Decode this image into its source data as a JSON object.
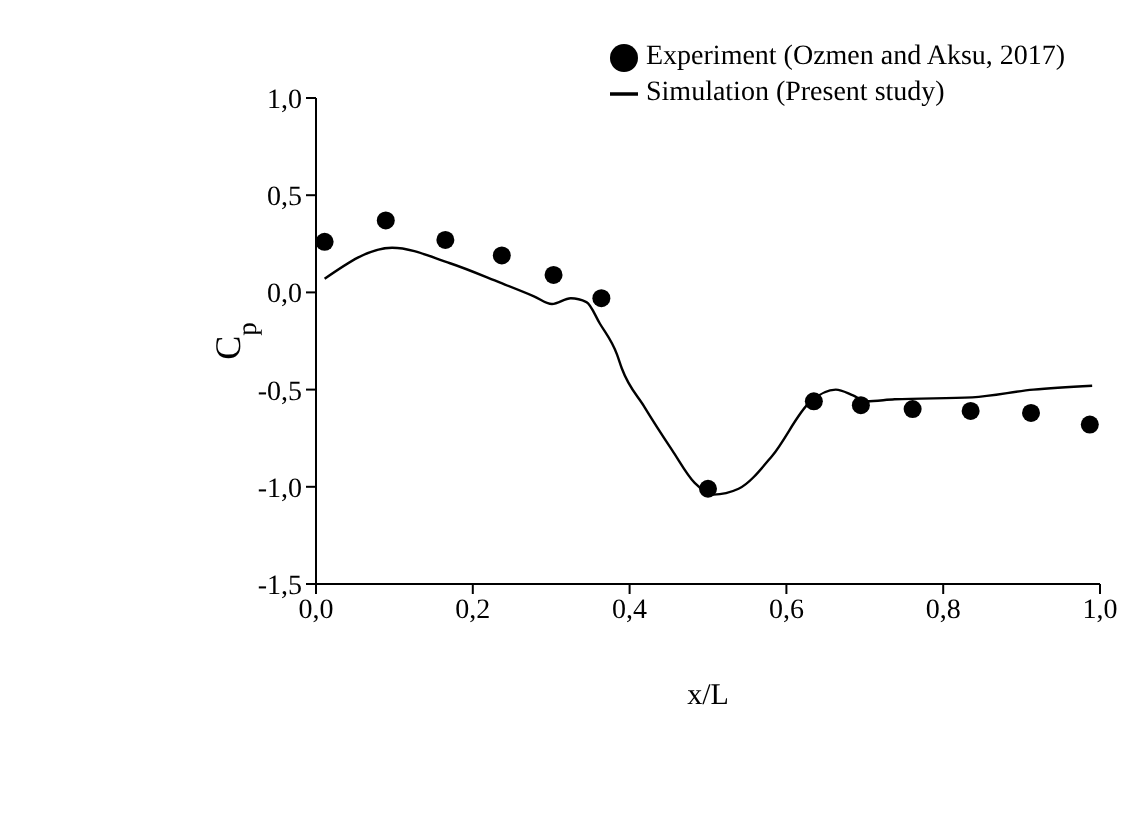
{
  "chart_data": {
    "type": "line",
    "xlabel": "x/L",
    "ylabel": "C$_{p}$",
    "xlim": [
      0,
      1
    ],
    "ylim": [
      -1.5,
      1
    ],
    "xticks": [
      {
        "value": 0,
        "label": "0,0"
      },
      {
        "value": 0.2,
        "label": "0,2"
      },
      {
        "value": 0.4,
        "label": "0,4"
      },
      {
        "value": 0.6,
        "label": "0,6"
      },
      {
        "value": 0.8,
        "label": "0,8"
      },
      {
        "value": 1,
        "label": "1,0"
      }
    ],
    "yticks": [
      {
        "value": -1.5,
        "label": "-1,5"
      },
      {
        "value": -1,
        "label": "-1,0"
      },
      {
        "value": -0.5,
        "label": "-0,5"
      },
      {
        "value": 0,
        "label": "0,0"
      },
      {
        "value": 0.5,
        "label": "0,5"
      },
      {
        "value": 1,
        "label": "1,0"
      }
    ],
    "grid": false,
    "legend": "top right",
    "series": [
      {
        "name": "Experiment (Ozmen and Aksu, 2017)",
        "type": "scatter",
        "marker": "circle",
        "color": "#000000",
        "x": [
          0.011,
          0.089,
          0.165,
          0.237,
          0.303,
          0.364,
          0.5,
          0.635,
          0.695,
          0.761,
          0.835,
          0.912,
          0.987
        ],
        "values": [
          0.26,
          0.37,
          0.27,
          0.19,
          0.09,
          -0.03,
          -1.01,
          -0.56,
          -0.58,
          -0.6,
          -0.61,
          -0.62,
          -0.68
        ]
      },
      {
        "name": "Simulation (Present study)",
        "marker": "none",
        "line_style": "solid",
        "color": "#000000",
        "x": [
          0.011,
          0.097,
          0.171,
          0.235,
          0.278,
          0.301,
          0.325,
          0.345,
          0.362,
          0.384,
          0.39,
          0.419,
          0.454,
          0.483,
          0.507,
          0.539,
          0.582,
          0.631,
          0.663,
          0.685,
          0.702,
          0.738,
          0.837,
          0.915,
          0.99
        ],
        "values": [
          0.07,
          0.23,
          0.15,
          0.05,
          -0.02,
          -0.06,
          -0.03,
          -0.05,
          -0.16,
          -0.32,
          -0.39,
          -0.59,
          -0.81,
          -0.98,
          -1.04,
          -1.01,
          -0.84,
          -0.56,
          -0.5,
          -0.53,
          -0.56,
          -0.55,
          -0.54,
          -0.5,
          -0.48
        ]
      }
    ]
  }
}
